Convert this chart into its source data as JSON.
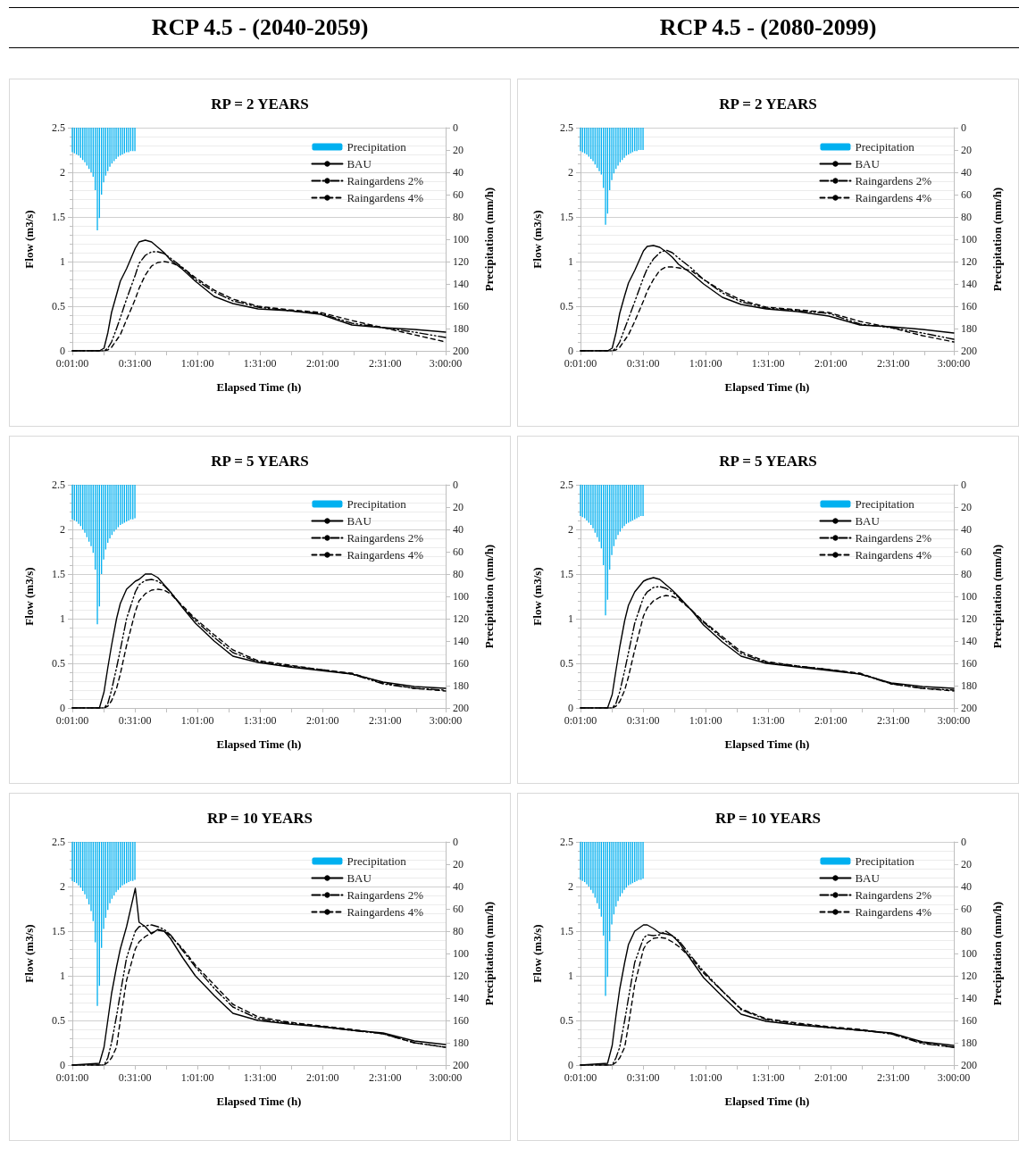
{
  "chart_data": [
    {
      "type": "other",
      "title": "RCP 4.5 - (2040-2059)"
    },
    {
      "type": "other",
      "title": "RCP 4.5 - (2080-2099)"
    },
    {
      "type": "line",
      "title": "RP = 2 YEARS",
      "xlabel": "Elapsed Time (h)",
      "ylabel": "Flow (m3/s)",
      "y2label": "Precipitation (mm/h)",
      "xlim": [
        0.0167,
        3
      ],
      "xticks": [
        {
          "value": 0.0167,
          "label": "0:01:00"
        },
        {
          "value": 0.2667,
          "label": null
        },
        {
          "value": 0.5167,
          "label": "0:31:00"
        },
        {
          "value": 0.7667,
          "label": null
        },
        {
          "value": 1.0167,
          "label": "1:01:00"
        },
        {
          "value": 1.2667,
          "label": null
        },
        {
          "value": 1.5167,
          "label": "1:31:00"
        },
        {
          "value": 1.7667,
          "label": null
        },
        {
          "value": 2.0167,
          "label": "2:01:00"
        },
        {
          "value": 2.2667,
          "label": null
        },
        {
          "value": 2.5167,
          "label": "2:31:00"
        },
        {
          "value": 2.7667,
          "label": null
        },
        {
          "value": 3,
          "label": "3:00:00"
        }
      ],
      "ylim": [
        0,
        2.5
      ],
      "yticks": [
        0,
        0.5,
        1,
        1.5,
        2,
        2.5
      ],
      "y2lim": [
        200,
        0
      ],
      "y2ticks": [
        0,
        20,
        40,
        60,
        80,
        100,
        120,
        140,
        160,
        180,
        200
      ],
      "grid": "y",
      "legend": "top right",
      "x": [
        0.0167,
        0.233,
        0.27,
        0.3,
        0.33,
        0.37,
        0.4,
        0.45,
        0.52,
        0.55,
        0.6,
        0.65,
        0.7,
        0.75,
        0.8,
        0.9,
        1.0,
        1.15,
        1.3,
        1.5,
        1.75,
        2.0,
        2.25,
        2.5,
        2.75,
        3.0
      ],
      "series": [
        {
          "name": "Precipitation",
          "type": "bar",
          "axis": "y2",
          "color": "#00b0f0",
          "x": [
            0.0167,
            0.0333,
            0.05,
            0.0667,
            0.0833,
            0.1,
            0.1167,
            0.1333,
            0.15,
            0.1667,
            0.1833,
            0.2,
            0.2167,
            0.2333,
            0.25,
            0.2667,
            0.2833,
            0.3,
            0.3167,
            0.3333,
            0.35,
            0.3667,
            0.3833,
            0.4,
            0.4167,
            0.4333,
            0.45,
            0.4667,
            0.4833,
            0.5,
            0.5167
          ],
          "values": [
            22,
            23,
            24,
            25,
            27,
            29,
            31,
            34,
            37,
            40,
            44,
            56,
            92,
            81,
            60,
            49,
            43,
            39,
            35,
            32,
            30,
            28,
            26,
            25,
            24,
            23,
            22,
            22,
            21,
            21,
            21
          ]
        },
        {
          "name": "BAU",
          "color": "#000000",
          "line_style": "solid",
          "values": [
            0,
            0,
            0.03,
            0.2,
            0.43,
            0.63,
            0.78,
            0.92,
            1.15,
            1.22,
            1.24,
            1.22,
            1.16,
            1.1,
            1.02,
            0.91,
            0.78,
            0.61,
            0.53,
            0.47,
            0.45,
            0.41,
            0.29,
            0.26,
            0.24,
            0.21
          ]
        },
        {
          "name": "Raingardens 2%",
          "color": "#000000",
          "line_style": "dashdot",
          "values": [
            0,
            0,
            0,
            0.03,
            0.1,
            0.25,
            0.37,
            0.58,
            0.85,
            0.98,
            1.07,
            1.11,
            1.11,
            1.09,
            1.04,
            0.93,
            0.8,
            0.66,
            0.56,
            0.49,
            0.45,
            0.42,
            0.31,
            0.26,
            0.21,
            0.15
          ]
        },
        {
          "name": "Raingardens 4%",
          "color": "#000000",
          "line_style": "dashed",
          "values": [
            0,
            0,
            0,
            0.01,
            0.04,
            0.12,
            0.18,
            0.35,
            0.58,
            0.7,
            0.85,
            0.95,
            0.99,
            1.0,
            0.99,
            0.93,
            0.82,
            0.68,
            0.58,
            0.5,
            0.46,
            0.43,
            0.34,
            0.26,
            0.18,
            0.1
          ]
        }
      ]
    },
    {
      "type": "line",
      "title": "RP = 2 YEARS",
      "xlabel": "Elapsed Time (h)",
      "ylabel": "Flow (m3/s)",
      "y2label": "Precipitation (mm/h)",
      "xlim": [
        0.0167,
        3
      ],
      "xticks": [
        {
          "value": 0.0167,
          "label": "0:01:00"
        },
        {
          "value": 0.2667,
          "label": null
        },
        {
          "value": 0.5167,
          "label": "0:31:00"
        },
        {
          "value": 0.7667,
          "label": null
        },
        {
          "value": 1.0167,
          "label": "1:01:00"
        },
        {
          "value": 1.2667,
          "label": null
        },
        {
          "value": 1.5167,
          "label": "1:31:00"
        },
        {
          "value": 1.7667,
          "label": null
        },
        {
          "value": 2.0167,
          "label": "2:01:00"
        },
        {
          "value": 2.2667,
          "label": null
        },
        {
          "value": 2.5167,
          "label": "2:31:00"
        },
        {
          "value": 2.7667,
          "label": null
        },
        {
          "value": 3,
          "label": "3:00:00"
        }
      ],
      "ylim": [
        0,
        2.5
      ],
      "yticks": [
        0,
        0.5,
        1,
        1.5,
        2,
        2.5
      ],
      "y2lim": [
        200,
        0
      ],
      "y2ticks": [
        0,
        20,
        40,
        60,
        80,
        100,
        120,
        140,
        160,
        180,
        200
      ],
      "grid": "y",
      "legend": "top right",
      "x": [
        0.0167,
        0.233,
        0.27,
        0.3,
        0.33,
        0.37,
        0.4,
        0.45,
        0.52,
        0.55,
        0.6,
        0.65,
        0.7,
        0.75,
        0.8,
        0.9,
        1.0,
        1.15,
        1.3,
        1.5,
        1.75,
        2.0,
        2.25,
        2.5,
        2.75,
        3.0
      ],
      "series": [
        {
          "name": "Precipitation",
          "type": "bar",
          "axis": "y2",
          "color": "#00b0f0",
          "x": [
            0.0167,
            0.0333,
            0.05,
            0.0667,
            0.0833,
            0.1,
            0.1167,
            0.1333,
            0.15,
            0.1667,
            0.1833,
            0.2,
            0.2167,
            0.2333,
            0.25,
            0.2667,
            0.2833,
            0.3,
            0.3167,
            0.3333,
            0.35,
            0.3667,
            0.3833,
            0.4,
            0.4167,
            0.4333,
            0.45,
            0.4667,
            0.4833,
            0.5,
            0.5167
          ],
          "values": [
            21,
            22,
            23,
            24,
            26,
            28,
            30,
            33,
            36,
            39,
            42,
            54,
            87,
            77,
            56,
            47,
            41,
            37,
            34,
            31,
            29,
            27,
            25,
            24,
            23,
            22,
            21,
            21,
            20,
            20,
            20
          ]
        },
        {
          "name": "BAU",
          "color": "#000000",
          "line_style": "solid",
          "values": [
            0,
            0,
            0.03,
            0.2,
            0.42,
            0.62,
            0.76,
            0.9,
            1.12,
            1.17,
            1.18,
            1.16,
            1.11,
            1.05,
            0.97,
            0.87,
            0.75,
            0.6,
            0.52,
            0.47,
            0.44,
            0.39,
            0.29,
            0.27,
            0.24,
            0.2
          ]
        },
        {
          "name": "Raingardens 2%",
          "color": "#000000",
          "line_style": "dashdot",
          "values": [
            0,
            0,
            0,
            0.03,
            0.1,
            0.25,
            0.36,
            0.55,
            0.82,
            0.92,
            1.03,
            1.1,
            1.13,
            1.1,
            1.04,
            0.93,
            0.8,
            0.65,
            0.55,
            0.48,
            0.45,
            0.42,
            0.3,
            0.26,
            0.2,
            0.13
          ]
        },
        {
          "name": "Raingardens 4%",
          "color": "#000000",
          "line_style": "dashed",
          "values": [
            0,
            0,
            0,
            0.01,
            0.04,
            0.12,
            0.18,
            0.33,
            0.56,
            0.67,
            0.8,
            0.9,
            0.94,
            0.94,
            0.93,
            0.9,
            0.8,
            0.67,
            0.57,
            0.49,
            0.46,
            0.43,
            0.33,
            0.26,
            0.17,
            0.1
          ]
        }
      ]
    },
    {
      "type": "line",
      "title": "RP = 5 YEARS",
      "xlabel": "Elapsed Time (h)",
      "ylabel": "Flow (m3/s)",
      "y2label": "Precipitation (mm/h)",
      "xlim": [
        0.0167,
        3
      ],
      "xticks": [
        {
          "value": 0.0167,
          "label": "0:01:00"
        },
        {
          "value": 0.2667,
          "label": null
        },
        {
          "value": 0.5167,
          "label": "0:31:00"
        },
        {
          "value": 0.7667,
          "label": null
        },
        {
          "value": 1.0167,
          "label": "1:01:00"
        },
        {
          "value": 1.2667,
          "label": null
        },
        {
          "value": 1.5167,
          "label": "1:31:00"
        },
        {
          "value": 1.7667,
          "label": null
        },
        {
          "value": 2.0167,
          "label": "2:01:00"
        },
        {
          "value": 2.2667,
          "label": null
        },
        {
          "value": 2.5167,
          "label": "2:31:00"
        },
        {
          "value": 2.7667,
          "label": null
        },
        {
          "value": 3,
          "label": "3:00:00"
        }
      ],
      "ylim": [
        0,
        2.5
      ],
      "yticks": [
        0,
        0.5,
        1,
        1.5,
        2,
        2.5
      ],
      "y2lim": [
        200,
        0
      ],
      "y2ticks": [
        0,
        20,
        40,
        60,
        80,
        100,
        120,
        140,
        160,
        180,
        200
      ],
      "grid": "y",
      "legend": "top right",
      "x": [
        0.0167,
        0.233,
        0.27,
        0.3,
        0.33,
        0.37,
        0.4,
        0.45,
        0.52,
        0.55,
        0.6,
        0.65,
        0.7,
        0.75,
        0.8,
        0.9,
        1.0,
        1.15,
        1.3,
        1.5,
        1.75,
        2.0,
        2.25,
        2.5,
        2.75,
        3.0
      ],
      "series": [
        {
          "name": "Precipitation",
          "type": "bar",
          "axis": "y2",
          "color": "#00b0f0",
          "x": [
            0.0167,
            0.0333,
            0.05,
            0.0667,
            0.0833,
            0.1,
            0.1167,
            0.1333,
            0.15,
            0.1667,
            0.1833,
            0.2,
            0.2167,
            0.2333,
            0.25,
            0.2667,
            0.2833,
            0.3,
            0.3167,
            0.3333,
            0.35,
            0.3667,
            0.3833,
            0.4,
            0.4167,
            0.4333,
            0.45,
            0.4667,
            0.4833,
            0.5,
            0.5167
          ],
          "values": [
            31,
            32,
            33,
            35,
            37,
            40,
            43,
            47,
            51,
            55,
            61,
            76,
            125,
            109,
            80,
            67,
            58,
            52,
            48,
            45,
            42,
            40,
            38,
            36,
            35,
            34,
            33,
            32,
            31,
            31,
            30
          ]
        },
        {
          "name": "BAU",
          "color": "#000000",
          "line_style": "solid",
          "values": [
            0,
            0,
            0.18,
            0.45,
            0.7,
            1.0,
            1.17,
            1.33,
            1.42,
            1.44,
            1.5,
            1.5,
            1.46,
            1.38,
            1.3,
            1.12,
            0.95,
            0.75,
            0.58,
            0.51,
            0.46,
            0.42,
            0.38,
            0.29,
            0.24,
            0.22
          ]
        },
        {
          "name": "Raingardens 2%",
          "color": "#000000",
          "line_style": "dashdot",
          "values": [
            0,
            0,
            0,
            0.05,
            0.2,
            0.45,
            0.65,
            1.0,
            1.3,
            1.38,
            1.43,
            1.44,
            1.42,
            1.37,
            1.3,
            1.13,
            0.98,
            0.79,
            0.62,
            0.52,
            0.47,
            0.43,
            0.38,
            0.27,
            0.22,
            0.2
          ]
        },
        {
          "name": "Raingardens 4%",
          "color": "#000000",
          "line_style": "dashed",
          "values": [
            0,
            0,
            0,
            0.02,
            0.08,
            0.22,
            0.38,
            0.7,
            1.08,
            1.2,
            1.28,
            1.32,
            1.33,
            1.32,
            1.28,
            1.14,
            1.0,
            0.82,
            0.65,
            0.53,
            0.48,
            0.43,
            0.39,
            0.28,
            0.22,
            0.19
          ]
        }
      ]
    },
    {
      "type": "line",
      "title": "RP = 5 YEARS",
      "xlabel": "Elapsed Time (h)",
      "ylabel": "Flow (m3/s)",
      "y2label": "Precipitation (mm/h)",
      "xlim": [
        0.0167,
        3
      ],
      "xticks": [
        {
          "value": 0.0167,
          "label": "0:01:00"
        },
        {
          "value": 0.2667,
          "label": null
        },
        {
          "value": 0.5167,
          "label": "0:31:00"
        },
        {
          "value": 0.7667,
          "label": null
        },
        {
          "value": 1.0167,
          "label": "1:01:00"
        },
        {
          "value": 1.2667,
          "label": null
        },
        {
          "value": 1.5167,
          "label": "1:31:00"
        },
        {
          "value": 1.7667,
          "label": null
        },
        {
          "value": 2.0167,
          "label": "2:01:00"
        },
        {
          "value": 2.2667,
          "label": null
        },
        {
          "value": 2.5167,
          "label": "2:31:00"
        },
        {
          "value": 2.7667,
          "label": null
        },
        {
          "value": 3,
          "label": "3:00:00"
        }
      ],
      "ylim": [
        0,
        2.5
      ],
      "yticks": [
        0,
        0.5,
        1,
        1.5,
        2,
        2.5
      ],
      "y2lim": [
        200,
        0
      ],
      "y2ticks": [
        0,
        20,
        40,
        60,
        80,
        100,
        120,
        140,
        160,
        180,
        200
      ],
      "grid": "y",
      "legend": "top right",
      "x": [
        0.0167,
        0.233,
        0.27,
        0.3,
        0.33,
        0.37,
        0.4,
        0.45,
        0.52,
        0.55,
        0.6,
        0.65,
        0.7,
        0.75,
        0.8,
        0.9,
        1.0,
        1.15,
        1.3,
        1.5,
        1.75,
        2.0,
        2.25,
        2.5,
        2.75,
        3.0
      ],
      "series": [
        {
          "name": "Precipitation",
          "type": "bar",
          "axis": "y2",
          "color": "#00b0f0",
          "x": [
            0.0167,
            0.0333,
            0.05,
            0.0667,
            0.0833,
            0.1,
            0.1167,
            0.1333,
            0.15,
            0.1667,
            0.1833,
            0.2,
            0.2167,
            0.2333,
            0.25,
            0.2667,
            0.2833,
            0.3,
            0.3167,
            0.3333,
            0.35,
            0.3667,
            0.3833,
            0.4,
            0.4167,
            0.4333,
            0.45,
            0.4667,
            0.4833,
            0.5,
            0.5167
          ],
          "values": [
            28,
            29,
            30,
            32,
            34,
            36,
            39,
            43,
            47,
            51,
            57,
            72,
            117,
            103,
            76,
            63,
            55,
            49,
            45,
            42,
            39,
            37,
            35,
            34,
            33,
            32,
            31,
            30,
            29,
            28,
            28
          ]
        },
        {
          "name": "BAU",
          "color": "#000000",
          "line_style": "solid",
          "values": [
            0,
            0,
            0.15,
            0.42,
            0.68,
            0.98,
            1.15,
            1.3,
            1.42,
            1.44,
            1.46,
            1.44,
            1.38,
            1.32,
            1.25,
            1.1,
            0.93,
            0.74,
            0.58,
            0.5,
            0.46,
            0.42,
            0.38,
            0.28,
            0.24,
            0.22
          ]
        },
        {
          "name": "Raingardens 2%",
          "color": "#000000",
          "line_style": "dashdot",
          "values": [
            0,
            0,
            0,
            0.05,
            0.18,
            0.42,
            0.62,
            0.95,
            1.24,
            1.3,
            1.35,
            1.36,
            1.34,
            1.3,
            1.24,
            1.1,
            0.96,
            0.78,
            0.61,
            0.51,
            0.47,
            0.43,
            0.38,
            0.27,
            0.22,
            0.2
          ]
        },
        {
          "name": "Raingardens 4%",
          "color": "#000000",
          "line_style": "dashed",
          "values": [
            0,
            0,
            0,
            0.02,
            0.07,
            0.2,
            0.35,
            0.65,
            1.03,
            1.12,
            1.2,
            1.24,
            1.26,
            1.25,
            1.22,
            1.1,
            0.97,
            0.8,
            0.63,
            0.52,
            0.47,
            0.43,
            0.39,
            0.27,
            0.22,
            0.19
          ]
        }
      ]
    },
    {
      "type": "line",
      "title": "RP = 10 YEARS",
      "xlabel": "Elapsed Time (h)",
      "ylabel": "Flow (m3/s)",
      "y2label": "Precipitation (mm/h)",
      "xlim": [
        0.0167,
        3
      ],
      "xticks": [
        {
          "value": 0.0167,
          "label": "0:01:00"
        },
        {
          "value": 0.2667,
          "label": null
        },
        {
          "value": 0.5167,
          "label": "0:31:00"
        },
        {
          "value": 0.7667,
          "label": null
        },
        {
          "value": 1.0167,
          "label": "1:01:00"
        },
        {
          "value": 1.2667,
          "label": null
        },
        {
          "value": 1.5167,
          "label": "1:31:00"
        },
        {
          "value": 1.7667,
          "label": null
        },
        {
          "value": 2.0167,
          "label": "2:01:00"
        },
        {
          "value": 2.2667,
          "label": null
        },
        {
          "value": 2.5167,
          "label": "2:31:00"
        },
        {
          "value": 2.7667,
          "label": null
        },
        {
          "value": 3,
          "label": "3:00:00"
        }
      ],
      "ylim": [
        0,
        2.5
      ],
      "yticks": [
        0,
        0.5,
        1,
        1.5,
        2,
        2.5
      ],
      "y2lim": [
        200,
        0
      ],
      "y2ticks": [
        0,
        20,
        40,
        60,
        80,
        100,
        120,
        140,
        160,
        180,
        200
      ],
      "grid": "y",
      "legend": "top right",
      "x": [
        0.0167,
        0.233,
        0.27,
        0.3,
        0.33,
        0.37,
        0.4,
        0.45,
        0.52,
        0.55,
        0.6,
        0.65,
        0.7,
        0.75,
        0.8,
        0.9,
        1.0,
        1.15,
        1.3,
        1.5,
        1.75,
        2.0,
        2.25,
        2.5,
        2.75,
        3.0
      ],
      "series": [
        {
          "name": "Precipitation",
          "type": "bar",
          "axis": "y2",
          "color": "#00b0f0",
          "x": [
            0.0167,
            0.0333,
            0.05,
            0.0667,
            0.0833,
            0.1,
            0.1167,
            0.1333,
            0.15,
            0.1667,
            0.1833,
            0.2,
            0.2167,
            0.2333,
            0.25,
            0.2667,
            0.2833,
            0.3,
            0.3167,
            0.3333,
            0.35,
            0.3667,
            0.3833,
            0.4,
            0.4167,
            0.4333,
            0.45,
            0.4667,
            0.4833,
            0.5,
            0.5167
          ],
          "values": [
            35,
            36,
            37,
            39,
            41,
            44,
            47,
            51,
            56,
            62,
            71,
            90,
            147,
            129,
            95,
            78,
            68,
            61,
            55,
            51,
            48,
            45,
            43,
            41,
            39,
            38,
            37,
            36,
            35,
            35,
            34
          ]
        },
        {
          "name": "BAU",
          "color": "#000000",
          "line_style": "solid",
          "values": [
            0,
            0.02,
            0.2,
            0.5,
            0.8,
            1.1,
            1.3,
            1.55,
            1.98,
            1.6,
            1.55,
            1.47,
            1.52,
            1.5,
            1.42,
            1.2,
            1.0,
            0.78,
            0.58,
            0.5,
            0.46,
            0.43,
            0.39,
            0.36,
            0.27,
            0.23
          ]
        },
        {
          "name": "Raingardens 2%",
          "color": "#000000",
          "line_style": "dashdot",
          "values": [
            0,
            0,
            0,
            0.08,
            0.25,
            0.55,
            0.8,
            1.2,
            1.5,
            1.55,
            1.56,
            1.57,
            1.55,
            1.52,
            1.46,
            1.28,
            1.1,
            0.86,
            0.65,
            0.52,
            0.47,
            0.43,
            0.39,
            0.35,
            0.25,
            0.2
          ]
        },
        {
          "name": "Raingardens 4%",
          "color": "#000000",
          "line_style": "dashed",
          "values": [
            0,
            0,
            0,
            0.03,
            0.08,
            0.2,
            0.5,
            0.95,
            1.3,
            1.38,
            1.44,
            1.48,
            1.51,
            1.5,
            1.45,
            1.3,
            1.12,
            0.9,
            0.68,
            0.54,
            0.48,
            0.44,
            0.4,
            0.35,
            0.25,
            0.2
          ]
        }
      ]
    },
    {
      "type": "line",
      "title": "RP = 10 YEARS",
      "xlabel": "Elapsed Time (h)",
      "ylabel": "Flow (m3/s)",
      "y2label": "Precipitation (mm/h)",
      "xlim": [
        0.0167,
        3
      ],
      "xticks": [
        {
          "value": 0.0167,
          "label": "0:01:00"
        },
        {
          "value": 0.2667,
          "label": null
        },
        {
          "value": 0.5167,
          "label": "0:31:00"
        },
        {
          "value": 0.7667,
          "label": null
        },
        {
          "value": 1.0167,
          "label": "1:01:00"
        },
        {
          "value": 1.2667,
          "label": null
        },
        {
          "value": 1.5167,
          "label": "1:31:00"
        },
        {
          "value": 1.7667,
          "label": null
        },
        {
          "value": 2.0167,
          "label": "2:01:00"
        },
        {
          "value": 2.2667,
          "label": null
        },
        {
          "value": 2.5167,
          "label": "2:31:00"
        },
        {
          "value": 2.7667,
          "label": null
        },
        {
          "value": 3,
          "label": "3:00:00"
        }
      ],
      "ylim": [
        0,
        2.5
      ],
      "yticks": [
        0,
        0.5,
        1,
        1.5,
        2,
        2.5
      ],
      "y2lim": [
        200,
        0
      ],
      "y2ticks": [
        0,
        20,
        40,
        60,
        80,
        100,
        120,
        140,
        160,
        180,
        200
      ],
      "grid": "y",
      "legend": "top right",
      "x": [
        0.0167,
        0.233,
        0.27,
        0.3,
        0.33,
        0.37,
        0.4,
        0.45,
        0.52,
        0.55,
        0.6,
        0.65,
        0.7,
        0.75,
        0.8,
        0.9,
        1.0,
        1.15,
        1.3,
        1.5,
        1.75,
        2.0,
        2.25,
        2.5,
        2.75,
        3.0
      ],
      "series": [
        {
          "name": "Precipitation",
          "type": "bar",
          "axis": "y2",
          "color": "#00b0f0",
          "x": [
            0.0167,
            0.0333,
            0.05,
            0.0667,
            0.0833,
            0.1,
            0.1167,
            0.1333,
            0.15,
            0.1667,
            0.1833,
            0.2,
            0.2167,
            0.2333,
            0.25,
            0.2667,
            0.2833,
            0.3,
            0.3167,
            0.3333,
            0.35,
            0.3667,
            0.3833,
            0.4,
            0.4167,
            0.4333,
            0.45,
            0.4667,
            0.4833,
            0.5,
            0.5167
          ],
          "values": [
            34,
            35,
            36,
            38,
            40,
            43,
            46,
            50,
            55,
            60,
            67,
            84,
            138,
            121,
            89,
            74,
            65,
            58,
            53,
            49,
            46,
            43,
            41,
            39,
            38,
            37,
            36,
            35,
            34,
            34,
            33
          ]
        },
        {
          "name": "BAU",
          "color": "#000000",
          "line_style": "solid",
          "values": [
            0,
            0.02,
            0.22,
            0.55,
            0.85,
            1.15,
            1.35,
            1.5,
            1.57,
            1.57,
            1.53,
            1.48,
            1.47,
            1.45,
            1.38,
            1.18,
            0.98,
            0.77,
            0.57,
            0.49,
            0.45,
            0.42,
            0.39,
            0.36,
            0.26,
            0.22
          ]
        },
        {
          "name": "Raingardens 2%",
          "color": "#000000",
          "line_style": "dashdot",
          "values": [
            0,
            0,
            0,
            0.08,
            0.2,
            0.5,
            0.75,
            1.15,
            1.42,
            1.46,
            1.45,
            1.46,
            1.5,
            1.45,
            1.4,
            1.22,
            1.05,
            0.83,
            0.62,
            0.51,
            0.46,
            0.42,
            0.39,
            0.35,
            0.24,
            0.2
          ]
        },
        {
          "name": "Raingardens 4%",
          "color": "#000000",
          "line_style": "dashed",
          "values": [
            0,
            0,
            0,
            0.03,
            0.08,
            0.2,
            0.45,
            0.9,
            1.3,
            1.37,
            1.42,
            1.43,
            1.42,
            1.38,
            1.33,
            1.2,
            1.03,
            0.83,
            0.63,
            0.52,
            0.47,
            0.43,
            0.4,
            0.35,
            0.25,
            0.2
          ]
        }
      ]
    }
  ]
}
